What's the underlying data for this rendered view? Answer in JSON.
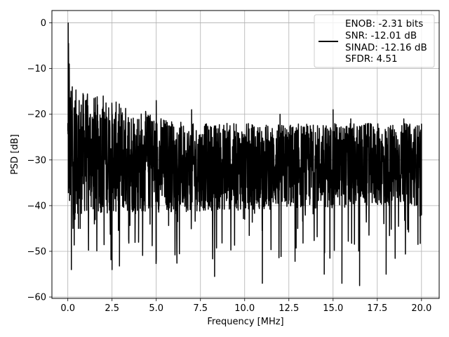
{
  "chart_data": {
    "type": "line",
    "xlabel": "Frequency [MHz]",
    "ylabel": "PSD [dB]",
    "xlim": [
      -0.9,
      21.0
    ],
    "ylim": [
      -60.3,
      2.7
    ],
    "xticks": [
      0.0,
      2.5,
      5.0,
      7.5,
      10.0,
      12.5,
      15.0,
      17.5,
      20.0
    ],
    "xtick_labels": [
      "0.0",
      "2.5",
      "5.0",
      "7.5",
      "10.0",
      "12.5",
      "15.0",
      "17.5",
      "20.0"
    ],
    "yticks": [
      0,
      -10,
      -20,
      -30,
      -40,
      -50,
      -60
    ],
    "ytick_labels": [
      "0",
      "−10",
      "−20",
      "−30",
      "−40",
      "−50",
      "−60"
    ],
    "grid": true,
    "legend_position": "top-right",
    "series": [
      {
        "color": "#000000",
        "x": [
          0.0,
          0.02,
          0.04,
          0.06,
          0.08,
          0.1,
          0.15,
          0.2,
          0.25,
          0.3,
          0.4,
          0.5,
          0.7,
          1.0,
          1.5,
          2.0,
          2.5,
          3.0,
          4.0,
          5.0,
          6.0,
          7.0,
          8.0,
          8.3,
          9.0,
          10.0,
          11.0,
          12.0,
          13.0,
          14.0,
          14.5,
          15.0,
          15.5,
          16.0,
          16.5,
          17.0,
          18.0,
          19.0,
          20.0
        ],
        "y": [
          -22,
          0,
          -4.5,
          -27,
          -9,
          -33,
          -18,
          -54,
          -14,
          -38,
          -43,
          -20,
          -45,
          -17,
          -44,
          -16,
          -54,
          -20,
          -48,
          -17,
          -38,
          -19,
          -40,
          -55.5,
          -22,
          -43,
          -57,
          -20,
          -45,
          -24,
          -55,
          -19,
          -57,
          -21,
          -57.5,
          -22,
          -55,
          -21,
          -42
        ]
      }
    ]
  },
  "legend": {
    "lines": [
      "ENOB: -2.31 bits",
      "SNR: -12.01 dB",
      "SINAD: -12.16 dB",
      "SFDR: 4.51"
    ]
  },
  "noise_band": {
    "upper_start": -14,
    "upper_end": -22,
    "lower_start": -42,
    "lower_end": -40
  }
}
